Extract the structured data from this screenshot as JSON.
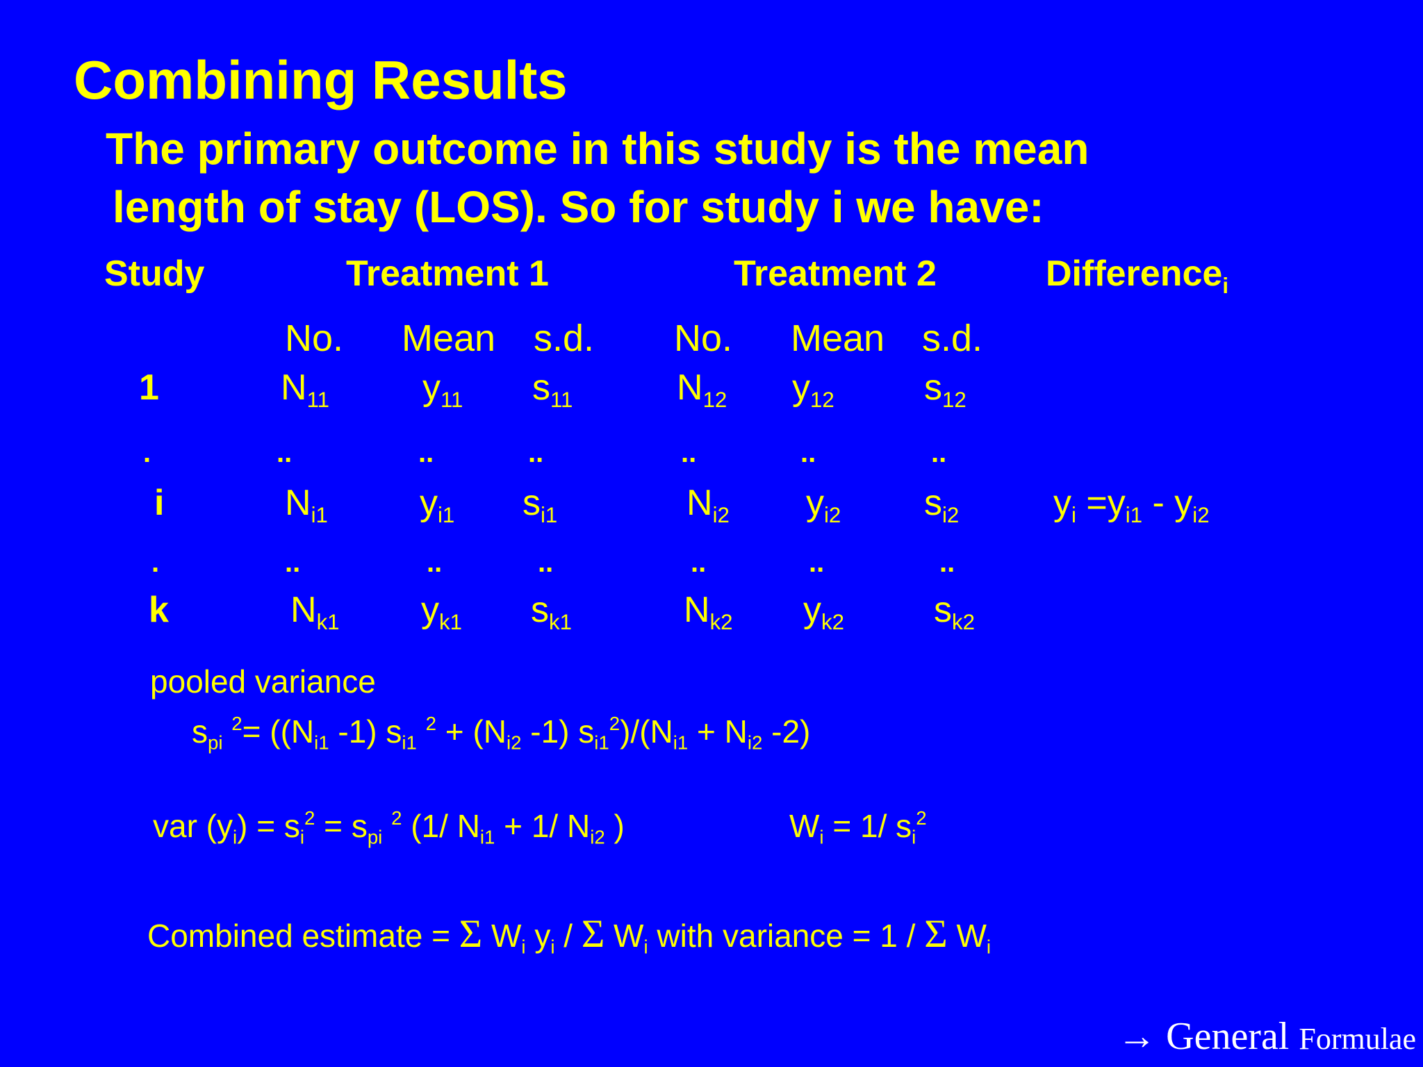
{
  "title": "Combining Results",
  "intro": {
    "line1": "The primary outcome in this study is the mean",
    "line2": "length of stay (LOS). So for study i we have:"
  },
  "table": {
    "headers": {
      "study": "Study",
      "treatment1": "Treatment 1",
      "treatment2": "Treatment 2",
      "difference": "Difference",
      "difference_sub": "i"
    },
    "subheaders": [
      "No.",
      "Mean",
      "s.d.",
      "No.",
      "Mean",
      "s.d."
    ],
    "rows": [
      {
        "label": "1",
        "cells": [
          [
            "N",
            "11"
          ],
          [
            "y",
            "11"
          ],
          [
            "s",
            "11"
          ],
          [
            "N",
            "12"
          ],
          [
            "y",
            "12"
          ],
          [
            "s",
            "12"
          ]
        ]
      },
      {
        "label": ".",
        "dots": [
          "..",
          "..",
          "..",
          "..",
          "..",
          ".."
        ]
      },
      {
        "label": "i",
        "cells": [
          [
            "N",
            "i1"
          ],
          [
            "y",
            "i1"
          ],
          [
            "s",
            "i1"
          ],
          [
            "N",
            "i2"
          ],
          [
            "y",
            "i2"
          ],
          [
            "s",
            "i2"
          ]
        ],
        "difference": {
          "lhs": "y",
          "lhs_sub": "i",
          "eq": "=",
          "a": "y",
          "a_sub": "i1",
          "minus": "-",
          "b": "y",
          "b_sub": "i2"
        }
      },
      {
        "label": ".",
        "dots": [
          "..",
          "..",
          "..",
          "..",
          "..",
          ".."
        ]
      },
      {
        "label": "k",
        "cells": [
          [
            "N",
            "k1"
          ],
          [
            "y",
            "k1"
          ],
          [
            "s",
            "k1"
          ],
          [
            "N",
            "k2"
          ],
          [
            "y",
            "k2"
          ],
          [
            "s",
            "k2"
          ]
        ]
      }
    ]
  },
  "pooled": {
    "label": "pooled variance",
    "formula": [
      [
        "s",
        ""
      ],
      [
        "pi",
        "sub"
      ],
      [
        " ",
        ""
      ],
      [
        "2",
        "sup"
      ],
      [
        "= ((N",
        ""
      ],
      [
        "i1",
        "sub"
      ],
      [
        " -1) s",
        ""
      ],
      [
        "i1",
        "sub"
      ],
      [
        " ",
        ""
      ],
      [
        "2",
        "sup"
      ],
      [
        " + (N",
        ""
      ],
      [
        "i2",
        "sub"
      ],
      [
        " -1) s",
        ""
      ],
      [
        "i1",
        "sub"
      ],
      [
        "2",
        "sup"
      ],
      [
        ")/(N",
        ""
      ],
      [
        "i1",
        "sub"
      ],
      [
        " + N",
        ""
      ],
      [
        "i2",
        "sub"
      ],
      [
        " -2)",
        ""
      ]
    ]
  },
  "variance": {
    "formula": [
      [
        "var (y",
        ""
      ],
      [
        "i",
        "sub"
      ],
      [
        ")  = s",
        ""
      ],
      [
        "i",
        "sub"
      ],
      [
        "2",
        "sup"
      ],
      [
        " = s",
        ""
      ],
      [
        "pi",
        "sub"
      ],
      [
        " ",
        ""
      ],
      [
        "2",
        "sup"
      ],
      [
        " (1/ N",
        ""
      ],
      [
        "i1",
        "sub"
      ],
      [
        " + 1/ N",
        ""
      ],
      [
        "i2",
        "sub"
      ],
      [
        " )",
        ""
      ]
    ],
    "weight": [
      [
        "W",
        ""
      ],
      [
        "i",
        "sub"
      ],
      [
        " = 1/ s",
        ""
      ],
      [
        "i",
        "sub"
      ],
      [
        "2",
        "sup"
      ]
    ]
  },
  "combined": {
    "formula": [
      [
        "Combined estimate = ",
        ""
      ],
      [
        "Σ",
        "sym"
      ],
      [
        " W",
        ""
      ],
      [
        "i",
        "sub"
      ],
      [
        " y",
        ""
      ],
      [
        "i",
        "sub"
      ],
      [
        " / ",
        ""
      ],
      [
        "Σ",
        "sym"
      ],
      [
        " W",
        ""
      ],
      [
        "i",
        "sub"
      ],
      [
        "   with variance =  1 / ",
        ""
      ],
      [
        "Σ",
        "sym"
      ],
      [
        " W",
        ""
      ],
      [
        "i",
        "sub"
      ]
    ]
  },
  "footer_link": {
    "arrow": "→",
    "word1": "General",
    "word2": "Formulae"
  }
}
